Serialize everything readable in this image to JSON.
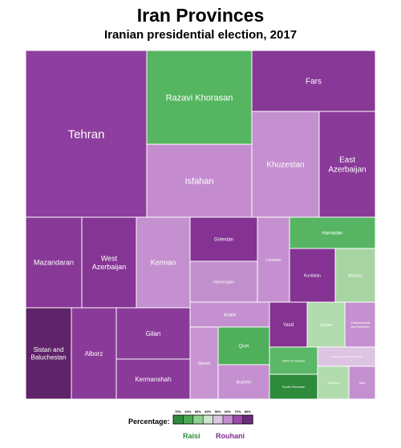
{
  "header": {
    "title": "Iran Provinces",
    "subtitle": "Iranian presidential election, 2017"
  },
  "legend": {
    "label": "Percentage:",
    "ticks": [
      "70%",
      "60%",
      "50%",
      "40%",
      "50%",
      "60%",
      "70%",
      "80%"
    ],
    "left_name": "Raisi",
    "right_name": "Rouhani",
    "colors": [
      "#2e8b3c",
      "#4aaa55",
      "#8fcf8f",
      "#cfe6cf",
      "#dcc4e2",
      "#c28ccf",
      "#9b4aa8",
      "#6c2a7a"
    ]
  },
  "chart_data": {
    "type": "treemap",
    "title": "Iran Provinces",
    "subtitle": "Iranian presidential election, 2017",
    "items": [
      {
        "name": "Tehran",
        "winner": "Rouhani",
        "percent": 73,
        "color": "#8e3e9e"
      },
      {
        "name": "Razavi Khorasan",
        "winner": "Raisi",
        "percent": 60,
        "color": "#55b560"
      },
      {
        "name": "Isfahan",
        "winner": "Rouhani",
        "percent": 55,
        "color": "#c48ccf"
      },
      {
        "name": "Fars",
        "winner": "Rouhani",
        "percent": 65,
        "color": "#883896"
      },
      {
        "name": "Khuzestan",
        "winner": "Rouhani",
        "percent": 55,
        "color": "#c490cf"
      },
      {
        "name": "East Azerbaijan",
        "winner": "Rouhani",
        "percent": 66,
        "color": "#8a3a98"
      },
      {
        "name": "Mazandaran",
        "winner": "Rouhani",
        "percent": 65,
        "color": "#883896"
      },
      {
        "name": "West Azerbaijan",
        "winner": "Rouhani",
        "percent": 68,
        "color": "#853594"
      },
      {
        "name": "Kerman",
        "winner": "Rouhani",
        "percent": 55,
        "color": "#c490cf"
      },
      {
        "name": "Golestan",
        "winner": "Rouhani",
        "percent": 70,
        "color": "#843393"
      },
      {
        "name": "Hormozgan",
        "winner": "Rouhani",
        "percent": 56,
        "color": "#c090cc"
      },
      {
        "name": "Lorestan",
        "winner": "Rouhani",
        "percent": 55,
        "color": "#c490cf"
      },
      {
        "name": "Hamadan",
        "winner": "Raisi",
        "percent": 58,
        "color": "#57b462"
      },
      {
        "name": "Kurdistan",
        "winner": "Rouhani",
        "percent": 72,
        "color": "#843393"
      },
      {
        "name": "Markazi",
        "winner": "Raisi",
        "percent": 52,
        "color": "#a8d4a4"
      },
      {
        "name": "Sistan and Baluchestan",
        "winner": "Rouhani",
        "percent": 80,
        "color": "#5e2368"
      },
      {
        "name": "Alborz",
        "winner": "Rouhani",
        "percent": 66,
        "color": "#8a3a98"
      },
      {
        "name": "Gilan",
        "winner": "Rouhani",
        "percent": 66,
        "color": "#8a3a98"
      },
      {
        "name": "Kermanshah",
        "winner": "Rouhani",
        "percent": 66,
        "color": "#8a3a98"
      },
      {
        "name": "Ardabil",
        "winner": "Rouhani",
        "percent": 55,
        "color": "#c490cf"
      },
      {
        "name": "Qazvin",
        "winner": "Rouhani",
        "percent": 53,
        "color": "#c894d2"
      },
      {
        "name": "Qom",
        "winner": "Raisi",
        "percent": 62,
        "color": "#4faf5b"
      },
      {
        "name": "Bushehr",
        "winner": "Rouhani",
        "percent": 55,
        "color": "#c490cf"
      },
      {
        "name": "Yazd",
        "winner": "Rouhani",
        "percent": 70,
        "color": "#843393"
      },
      {
        "name": "Zanjan",
        "winner": "Raisi",
        "percent": 50,
        "color": "#b2dbae"
      },
      {
        "name": "Chaharmahal and Bakhtiari",
        "winner": "Rouhani",
        "percent": 55,
        "color": "#c490cf"
      },
      {
        "name": "North Khorasan",
        "winner": "Raisi",
        "percent": 57,
        "color": "#5bb866"
      },
      {
        "name": "Kohgiluyeh and Boyer-Ahmad",
        "winner": "Rouhani",
        "percent": 50,
        "color": "#dcc4e2"
      },
      {
        "name": "South Khorasan",
        "winner": "Raisi",
        "percent": 67,
        "color": "#2e8b3c"
      },
      {
        "name": "Semnan",
        "winner": "Raisi",
        "percent": 50,
        "color": "#b2dbae"
      },
      {
        "name": "Ilam",
        "winner": "Rouhani",
        "percent": 56,
        "color": "#c490cf"
      }
    ]
  }
}
